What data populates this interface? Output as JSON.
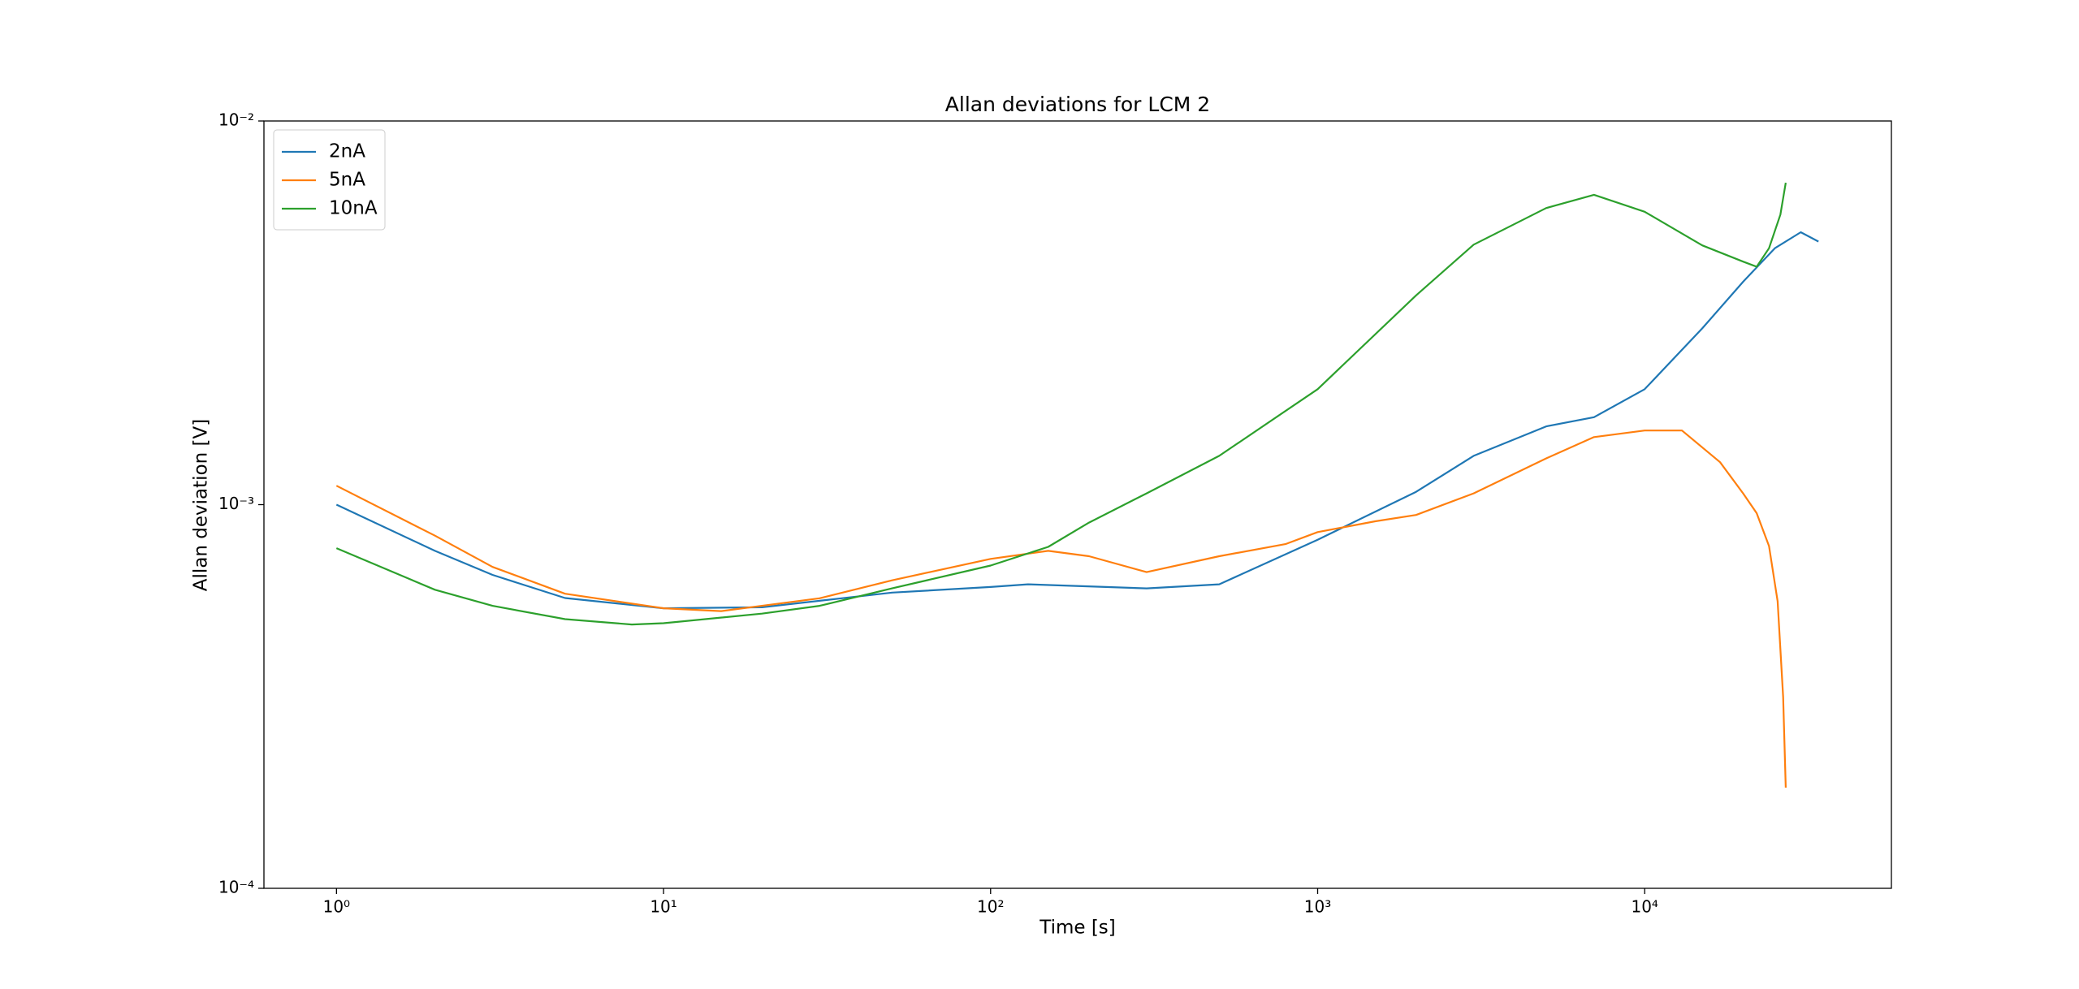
{
  "chart_data": {
    "type": "line",
    "title": "Allan deviations for LCM 2",
    "x_label": "Time [s]",
    "y_label": "Allan deviation [V]",
    "xscale": "log",
    "yscale": "log",
    "xlim": [
      0.6,
      56800
    ],
    "ylim": [
      0.0001,
      0.01
    ],
    "xticks": [
      {
        "value": 1,
        "label": "10⁰"
      },
      {
        "value": 10,
        "label": "10¹"
      },
      {
        "value": 100,
        "label": "10²"
      },
      {
        "value": 1000,
        "label": "10³"
      },
      {
        "value": 10000,
        "label": "10⁴"
      }
    ],
    "yticks": [
      {
        "value": 0.0001,
        "label": "10⁻⁴"
      },
      {
        "value": 0.001,
        "label": "10⁻³"
      },
      {
        "value": 0.01,
        "label": "10⁻²"
      }
    ],
    "legend": "upper left",
    "series": [
      {
        "name": "2nA",
        "color": "#1f77b4",
        "x": [
          1,
          2,
          3,
          5,
          10,
          20,
          50,
          100,
          130,
          300,
          500,
          1000,
          2000,
          3000,
          5000,
          7000,
          10000,
          15000,
          20000,
          25000,
          30000,
          34000
        ],
        "values": [
          0.001,
          0.000758,
          0.000656,
          0.000571,
          0.000537,
          0.00054,
          0.00059,
          0.00061,
          0.00062,
          0.000605,
          0.00062,
          0.00081,
          0.00108,
          0.00134,
          0.0016,
          0.00169,
          0.002,
          0.00288,
          0.00381,
          0.00466,
          0.00513,
          0.00485
        ]
      },
      {
        "name": "5nA",
        "color": "#ff7f0e",
        "x": [
          1,
          2,
          3,
          5,
          10,
          15,
          30,
          50,
          100,
          150,
          200,
          300,
          500,
          800,
          1000,
          1500,
          2000,
          3000,
          5000,
          7000,
          10000,
          13000,
          17000,
          20000,
          22000,
          24000,
          25500,
          26500,
          27000
        ],
        "values": [
          0.00112,
          0.00083,
          0.000688,
          0.000586,
          0.000537,
          0.000528,
          0.00057,
          0.000635,
          0.000722,
          0.000758,
          0.000734,
          0.000667,
          0.000734,
          0.00079,
          0.000848,
          0.000905,
          0.00094,
          0.00107,
          0.00132,
          0.0015,
          0.00156,
          0.00156,
          0.00129,
          0.00107,
          0.00095,
          0.00078,
          0.00056,
          0.000315,
          0.000183
        ]
      },
      {
        "name": "10nA",
        "color": "#2ca02c",
        "x": [
          1,
          2,
          3,
          5,
          8,
          10,
          20,
          30,
          50,
          100,
          150,
          200,
          300,
          500,
          1000,
          2000,
          3000,
          5000,
          7000,
          10000,
          15000,
          20000,
          22000,
          24000,
          26000,
          27000
        ],
        "values": [
          0.00077,
          0.0006,
          0.000545,
          0.000503,
          0.000487,
          0.000491,
          0.00052,
          0.000545,
          0.000605,
          0.000694,
          0.000776,
          0.000898,
          0.00107,
          0.00134,
          0.002,
          0.00351,
          0.00476,
          0.00593,
          0.00642,
          0.0058,
          0.00474,
          0.0043,
          0.00417,
          0.00466,
          0.0057,
          0.0069
        ]
      }
    ]
  }
}
